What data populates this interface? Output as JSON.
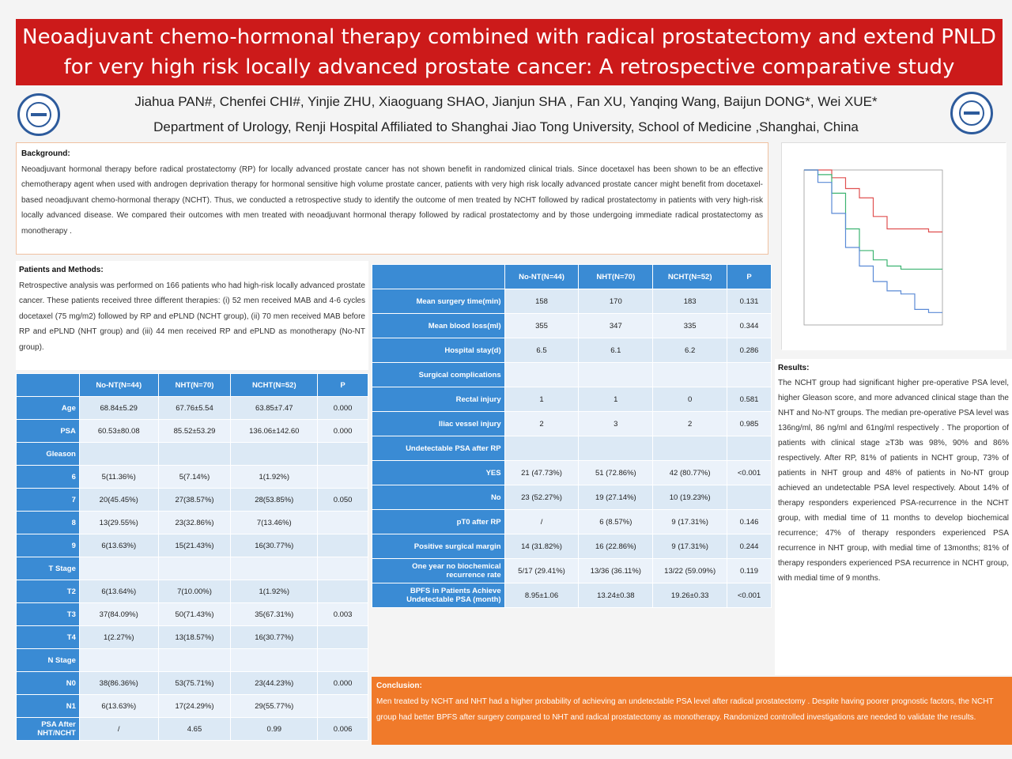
{
  "poster": {
    "title": "Neoadjuvant chemo-hormonal therapy combined with radical prostatectomy and extend PNLD for very high risk locally advanced prostate cancer: A retrospective comparative study",
    "authors": "Jiahua PAN#, Chenfei CHI#, Yinjie ZHU, Xiaoguang SHAO, Jianjun SHA , Fan XU, Yanqing Wang, Baijun DONG*, Wei XUE*",
    "affiliation": "Department of Urology, Renji Hospital Affiliated to Shanghai Jiao Tong University, School of Medicine ,Shanghai, China"
  },
  "background": {
    "heading": "Background:",
    "text": "Neoadjuvant hormonal therapy before radical prostatectomy (RP) for locally advanced prostate cancer has not shown benefit in randomized clinical trials. Since docetaxel has been shown to be an effective chemotherapy agent when used with androgen deprivation therapy for hormonal sensitive high volume prostate cancer, patients with very high risk locally advanced prostate cancer might benefit from docetaxel-based neoadjuvant chemo-hormonal therapy (NCHT). Thus, we conducted a retrospective study to identify the outcome of men treated by NCHT followed by radical prostatectomy in patients with very high-risk locally advanced disease. We compared their outcomes with men treated with neoadjuvant hormonal therapy followed by radical prostatectomy and by those undergoing immediate radical prostatectomy as monotherapy ."
  },
  "methods": {
    "heading": "Patients and Methods:",
    "text": "Retrospective analysis was performed on 166 patients who had high-risk locally advanced prostate cancer. These patients received three different therapies: (i) 52 men received MAB and 4-6 cycles docetaxel (75 mg/m2) followed by RP and ePLND (NCHT group), (ii) 70 men received MAB before RP and ePLND (NHT group) and (iii) 44 men received RP and ePLND as monotherapy (No-NT group)."
  },
  "results": {
    "heading": "Results:",
    "text": "The NCHT group had significant higher pre-operative PSA level, higher Gleason score, and more advanced clinical stage than the NHT and No-NT groups. The median pre-operative PSA level was 136ng/ml, 86 ng/ml and 61ng/ml respectively . The proportion of patients with clinical stage ≥T3b was 98%, 90% and 86% respectively. After RP, 81% of patients in NCHT group, 73% of patients in NHT group and 48% of patients in No-NT group achieved an undetectable PSA level respectively. About 14% of therapy responders experienced PSA-recurrence in the NCHT group, with medial time of 11 months to develop biochemical recurrence; 47% of therapy responders experienced PSA recurrence in NHT group, with medial time of 13months; 81% of therapy responders experienced PSA recurrence in NCHT group, with medial time of 9 months."
  },
  "conclusion": {
    "heading": "Conclusion:",
    "text": "Men treated by NCHT and NHT had a higher probability of achieving an undetectable PSA level after radical prostatectomy . Despite having poorer prognostic factors, the NCHT group had better BPFS after surgery compared to NHT and radical prostatectomy as monotherapy. Randomized controlled investigations are needed to validate the results."
  },
  "table1": {
    "headers": [
      "",
      "No-NT(N=44)",
      "NHT(N=70)",
      "NCHT(N=52)",
      "P"
    ],
    "rows": [
      {
        "label": "Age",
        "c1": "68.84±5.29",
        "c2": "67.76±5.54",
        "c3": "63.85±7.47",
        "p": "0.000"
      },
      {
        "label": "PSA",
        "c1": "60.53±80.08",
        "c2": "85.52±53.29",
        "c3": "136.06±142.60",
        "p": "0.000"
      },
      {
        "label": "Gleason",
        "c1": "",
        "c2": "",
        "c3": "",
        "p": ""
      },
      {
        "label": "6",
        "c1": "5(11.36%)",
        "c2": "5(7.14%)",
        "c3": "1(1.92%)",
        "p": ""
      },
      {
        "label": "7",
        "c1": "20(45.45%)",
        "c2": "27(38.57%)",
        "c3": "28(53.85%)",
        "p": "0.050"
      },
      {
        "label": "8",
        "c1": "13(29.55%)",
        "c2": "23(32.86%)",
        "c3": "7(13.46%)",
        "p": ""
      },
      {
        "label": "9",
        "c1": "6(13.63%)",
        "c2": "15(21.43%)",
        "c3": "16(30.77%)",
        "p": ""
      },
      {
        "label": "T Stage",
        "c1": "",
        "c2": "",
        "c3": "",
        "p": ""
      },
      {
        "label": "T2",
        "c1": "6(13.64%)",
        "c2": "7(10.00%)",
        "c3": "1(1.92%)",
        "p": ""
      },
      {
        "label": "T3",
        "c1": "37(84.09%)",
        "c2": "50(71.43%)",
        "c3": "35(67.31%)",
        "p": "0.003"
      },
      {
        "label": "T4",
        "c1": "1(2.27%)",
        "c2": "13(18.57%)",
        "c3": "16(30.77%)",
        "p": ""
      },
      {
        "label": "N Stage",
        "c1": "",
        "c2": "",
        "c3": "",
        "p": ""
      },
      {
        "label": "N0",
        "c1": "38(86.36%)",
        "c2": "53(75.71%)",
        "c3": "23(44.23%)",
        "p": "0.000"
      },
      {
        "label": "N1",
        "c1": "6(13.63%)",
        "c2": "17(24.29%)",
        "c3": "29(55.77%)",
        "p": ""
      },
      {
        "label": "PSA After NHT/NCHT",
        "c1": "/",
        "c2": "4.65",
        "c3": "0.99",
        "p": "0.006"
      }
    ]
  },
  "table2": {
    "headers": [
      "",
      "No-NT(N=44)",
      "NHT(N=70)",
      "NCHT(N=52)",
      "P"
    ],
    "rows": [
      {
        "label": "Mean surgery time(min)",
        "c1": "158",
        "c2": "170",
        "c3": "183",
        "p": "0.131"
      },
      {
        "label": "Mean blood loss(ml)",
        "c1": "355",
        "c2": "347",
        "c3": "335",
        "p": "0.344"
      },
      {
        "label": "Hospital stay(d)",
        "c1": "6.5",
        "c2": "6.1",
        "c3": "6.2",
        "p": "0.286"
      },
      {
        "label": "Surgical complications",
        "c1": "",
        "c2": "",
        "c3": "",
        "p": ""
      },
      {
        "label": "Rectal injury",
        "c1": "1",
        "c2": "1",
        "c3": "0",
        "p": "0.581"
      },
      {
        "label": "Iliac vessel injury",
        "c1": "2",
        "c2": "3",
        "c3": "2",
        "p": "0.985"
      },
      {
        "label": "Undetectable PSA after RP",
        "c1": "",
        "c2": "",
        "c3": "",
        "p": ""
      },
      {
        "label": "YES",
        "c1": "21 (47.73%)",
        "c2": "51 (72.86%)",
        "c3": "42 (80.77%)",
        "p": "<0.001"
      },
      {
        "label": "No",
        "c1": "23 (52.27%)",
        "c2": "19 (27.14%)",
        "c3": "10 (19.23%)",
        "p": ""
      },
      {
        "label": "pT0 after RP",
        "c1": "/",
        "c2": "6 (8.57%)",
        "c3": "9 (17.31%)",
        "p": "0.146"
      },
      {
        "label": "Positive surgical margin",
        "c1": "14 (31.82%)",
        "c2": "16 (22.86%)",
        "c3": "9 (17.31%)",
        "p": "0.244"
      },
      {
        "label": "One year no biochemical recurrence rate",
        "c1": "5/17 (29.41%)",
        "c2": "13/36 (36.11%)",
        "c3": "13/22 (59.09%)",
        "p": "0.119"
      },
      {
        "label": "BPFS in Patients Achieve Undetectable PSA (month)",
        "c1": "8.95±1.06",
        "c2": "13.24±0.38",
        "c3": "19.26±0.33",
        "p": "<0.001"
      }
    ]
  },
  "chart_data": {
    "type": "line",
    "x": [
      0,
      3,
      6,
      9,
      12,
      15,
      18,
      21,
      24,
      27,
      30
    ],
    "series": [
      {
        "values": [
          1.0,
          1.0,
          0.95,
          0.88,
          0.82,
          0.7,
          0.62,
          0.62,
          0.62,
          0.6,
          0.6
        ],
        "color": "#e05050"
      },
      {
        "values": [
          1.0,
          0.97,
          0.85,
          0.62,
          0.48,
          0.42,
          0.38,
          0.36,
          0.36,
          0.36,
          0.36
        ],
        "color": "#3cb371"
      },
      {
        "values": [
          1.0,
          0.92,
          0.72,
          0.5,
          0.38,
          0.28,
          0.22,
          0.2,
          0.1,
          0.08,
          0.08
        ],
        "color": "#5a8ad6"
      }
    ],
    "ylim": [
      0,
      1
    ],
    "grid": false
  },
  "colors": {
    "title_bg": "#cc1a1a",
    "table_header": "#3a8bd4",
    "table_cell": "#dce9f5",
    "conclusion_bg": "#f07a2a",
    "background_border": "#f0c0a0"
  }
}
